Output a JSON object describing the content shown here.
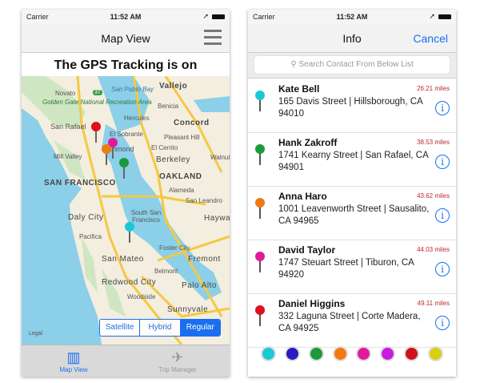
{
  "status": {
    "carrier": "Carrier",
    "time": "11:52 AM"
  },
  "left": {
    "nav_title": "Map View",
    "gps_text": "The GPS Tracking is on",
    "map": {
      "labels": [
        "Novato",
        "San Pablo Bay",
        "Vallejo",
        "Golden Gate National Recreation Area",
        "Hercules",
        "Benicia",
        "Concord",
        "San Rafael",
        "El Sobrante",
        "Pleasant Hill",
        "Richmond",
        "El Cerrito",
        "Mill Valley",
        "Berkeley",
        "Walnut",
        "Oakland",
        "San Francisco",
        "Alameda",
        "San Leandro",
        "Daly City",
        "South San Francisco",
        "Hayward",
        "Pacifica",
        "Foster City",
        "San Mateo",
        "Fremont",
        "Belmont",
        "Redwood City",
        "Palo Alto",
        "Woodside",
        "Sunnyvale",
        "37"
      ],
      "legal": "Legal",
      "pin_colors": [
        "#e0101e",
        "#e01a9c",
        "#f07a10",
        "#1a9a3a",
        "#1ac8d8"
      ],
      "map_type": {
        "options": [
          "Satellite",
          "Hybrid",
          "Regular"
        ],
        "selected": "Regular"
      }
    },
    "tabs": [
      {
        "label": "Map View",
        "icon": "map-icon",
        "active": true
      },
      {
        "label": "Trip Manager",
        "icon": "airplane-icon",
        "active": false
      }
    ]
  },
  "right": {
    "nav_title": "Info",
    "cancel": "Cancel",
    "search_placeholder": "Search Contact From Below List",
    "contacts": [
      {
        "name": "Kate Bell",
        "address": "165 Davis Street | Hillsborough, CA 94010",
        "distance": "26.21 miles",
        "color": "#1ac8d8"
      },
      {
        "name": "Hank Zakroff",
        "address": "1741 Kearny Street | San Rafael, CA 94901",
        "distance": "38.53 miles",
        "color": "#1a9a3a"
      },
      {
        "name": "Anna Haro",
        "address": "1001  Leavenworth Street | Sausalito, CA 94965",
        "distance": "43.62 miles",
        "color": "#f07a10"
      },
      {
        "name": "David Taylor",
        "address": "1747 Steuart Street | Tiburon, CA 94920",
        "distance": "44.03 miles",
        "color": "#e01a9c"
      },
      {
        "name": "Daniel Higgins",
        "address": "332 Laguna Street | Corte Madera, CA 94925",
        "distance": "49.11 miles",
        "color": "#e0101e"
      }
    ],
    "color_filters": [
      "#1ac8d8",
      "#2a1ac0",
      "#1a9a3a",
      "#f07a10",
      "#e01a9c",
      "#c81ae0",
      "#d0101a",
      "#d8d010"
    ]
  }
}
